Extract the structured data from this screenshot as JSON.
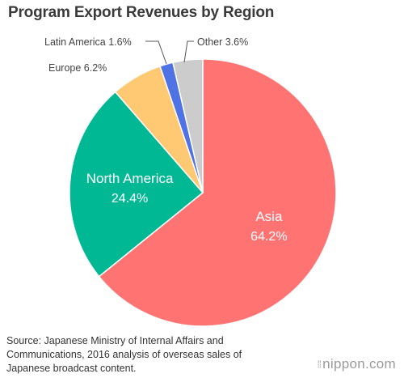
{
  "title": "Program Export Revenues by Region",
  "chart_data": {
    "type": "pie",
    "categories": [
      "Asia",
      "North America",
      "Europe",
      "Latin America",
      "Other"
    ],
    "values": [
      64.2,
      24.4,
      6.2,
      1.6,
      3.6
    ],
    "value_labels": [
      "64.2%",
      "24.4%",
      "6.2%",
      "1.6%",
      "3.6%"
    ],
    "colors": [
      "#ff7373",
      "#00b894",
      "#ffc873",
      "#4f73e5",
      "#cccccc"
    ],
    "start_angle": "12 o'clock, clockwise"
  },
  "source": "Source: Japanese Ministry of Internal Affairs and Communications, 2016 analysis of overseas sales of Japanese broadcast content.",
  "brand": "nippon.com"
}
